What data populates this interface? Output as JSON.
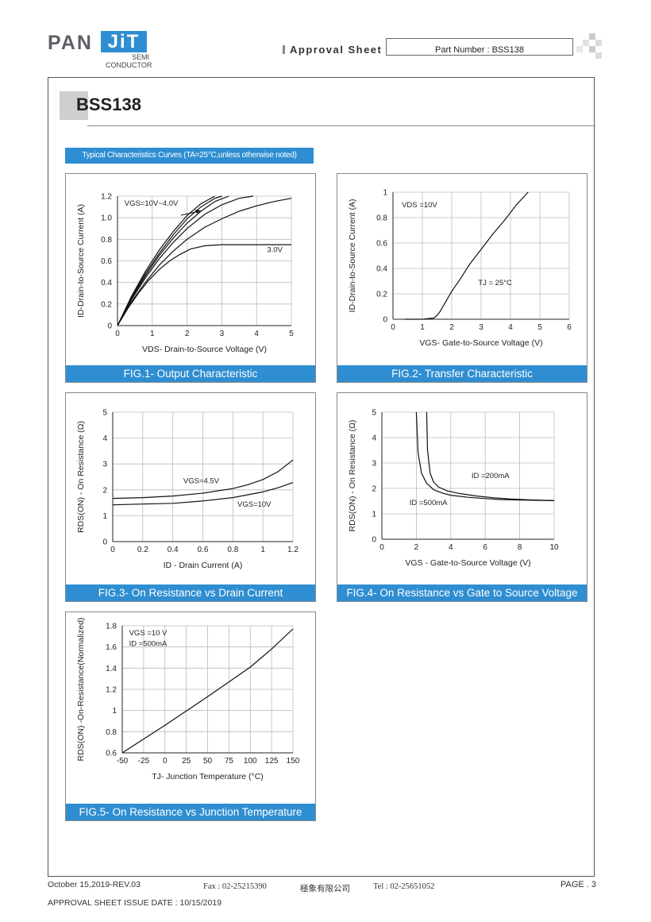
{
  "header": {
    "logo_pan": "PAN",
    "logo_jit": "JiT",
    "logo_semi": "SEMI",
    "logo_conductor": "CONDUCTOR",
    "approval_sheet": "Approval Sheet",
    "part_number": "Part Number : BSS138"
  },
  "title": "BSS138",
  "typical_banner": "Typical Characteristics Curves (TA=25°C,unless otherwise noted)",
  "colors": {
    "accent": "#2f8ed1"
  },
  "chart_data": [
    {
      "id": "fig1",
      "type": "line",
      "caption": "FIG.1-  Output   Characteristic",
      "xlabel": "VDS- Drain-to-Source Voltage (V)",
      "ylabel": "ID-Drain-to-Source Current (A)",
      "xlim": [
        0,
        5
      ],
      "ylim": [
        0,
        1.2
      ],
      "xticks": [
        0,
        1,
        2,
        3,
        4,
        5
      ],
      "yticks": [
        0,
        0.2,
        0.4,
        0.6,
        0.8,
        1.0,
        1.2
      ],
      "yticklabels": [
        "0",
        "0.2",
        "0.4",
        "0.6",
        "0.8",
        "1.0",
        "1.2"
      ],
      "annotations": [
        {
          "text": "VGS=10V~4.0V",
          "x": 0.2,
          "y": 1.11
        },
        {
          "text": "3.0V",
          "x": 4.3,
          "y": 0.68
        }
      ],
      "series": [
        {
          "x": [
            0,
            0.4,
            0.8,
            1.2,
            1.6,
            2.0,
            2.4,
            2.8
          ],
          "y": [
            0,
            0.27,
            0.5,
            0.7,
            0.87,
            1.02,
            1.13,
            1.2
          ]
        },
        {
          "x": [
            0,
            0.4,
            0.8,
            1.2,
            1.6,
            2.0,
            2.4,
            2.8,
            3.0
          ],
          "y": [
            0,
            0.26,
            0.48,
            0.67,
            0.84,
            0.99,
            1.1,
            1.18,
            1.2
          ]
        },
        {
          "x": [
            0,
            0.4,
            0.8,
            1.2,
            1.6,
            2.0,
            2.4,
            2.8,
            3.2
          ],
          "y": [
            0,
            0.25,
            0.46,
            0.65,
            0.81,
            0.95,
            1.06,
            1.15,
            1.2
          ]
        },
        {
          "x": [
            0,
            0.4,
            0.8,
            1.2,
            1.6,
            2.0,
            2.5,
            3.0,
            3.5,
            3.9
          ],
          "y": [
            0,
            0.24,
            0.44,
            0.62,
            0.77,
            0.9,
            1.03,
            1.12,
            1.18,
            1.2
          ]
        },
        {
          "x": [
            0,
            0.4,
            0.8,
            1.2,
            1.6,
            2.0,
            2.5,
            3.0,
            3.5,
            4.0,
            4.5,
            5.0
          ],
          "y": [
            0,
            0.22,
            0.4,
            0.56,
            0.69,
            0.8,
            0.91,
            0.99,
            1.06,
            1.11,
            1.15,
            1.18
          ]
        },
        {
          "x": [
            0,
            0.3,
            0.6,
            0.9,
            1.2,
            1.5,
            1.8,
            2.1,
            2.5,
            3.0,
            3.5,
            4.0,
            5.0
          ],
          "y": [
            0,
            0.16,
            0.3,
            0.42,
            0.52,
            0.6,
            0.66,
            0.71,
            0.74,
            0.75,
            0.75,
            0.75,
            0.75
          ]
        }
      ]
    },
    {
      "id": "fig2",
      "type": "line",
      "caption": "FIG.2-  Transfer  Characteristic",
      "xlabel": "VGS- Gate-to-Source Voltage (V)",
      "ylabel": "ID-Drain-to-Source Current (A)",
      "xlim": [
        0,
        6
      ],
      "ylim": [
        0,
        1
      ],
      "xticks": [
        0,
        1,
        2,
        3,
        4,
        5,
        6
      ],
      "yticks": [
        0,
        0.2,
        0.4,
        0.6,
        0.8,
        1
      ],
      "yticklabels": [
        "0",
        "0.2",
        "0.4",
        "0.6",
        "0.8",
        "1"
      ],
      "annotations": [
        {
          "text": "VDS =10V",
          "x": 0.3,
          "y": 0.88
        },
        {
          "text": "TJ = 25°C",
          "x": 2.9,
          "y": 0.27
        }
      ],
      "series": [
        {
          "x": [
            0.4,
            1.0,
            1.4,
            1.5,
            1.6,
            1.8,
            2.0,
            2.3,
            2.6,
            3.0,
            3.4,
            3.8,
            4.2,
            4.6
          ],
          "y": [
            0,
            0,
            0.01,
            0.03,
            0.06,
            0.14,
            0.22,
            0.32,
            0.43,
            0.55,
            0.67,
            0.78,
            0.9,
            1.0
          ]
        }
      ]
    },
    {
      "id": "fig3",
      "type": "line",
      "caption": "FIG.3-  On Resistance vs Drain Current",
      "xlabel": "ID - Drain Current (A)",
      "ylabel": "RDS(ON) - On Resistance (Ω)",
      "xlim": [
        0,
        1.2
      ],
      "ylim": [
        0,
        5
      ],
      "xticks": [
        0,
        0.2,
        0.4,
        0.6,
        0.8,
        1,
        1.2
      ],
      "yticks": [
        0,
        1,
        2,
        3,
        4,
        5
      ],
      "xticklabels": [
        "0",
        "0.2",
        "0.4",
        "0.6",
        "0.8",
        "1",
        "1.2"
      ],
      "annotations": [
        {
          "text": "VGS=4.5V",
          "x": 0.47,
          "y": 2.25
        },
        {
          "text": "VGS=10V",
          "x": 0.83,
          "y": 1.35
        }
      ],
      "series": [
        {
          "name": "VGS=4.5V",
          "x": [
            0,
            0.2,
            0.4,
            0.6,
            0.8,
            0.9,
            1.0,
            1.1,
            1.2
          ],
          "y": [
            1.67,
            1.7,
            1.76,
            1.87,
            2.05,
            2.2,
            2.4,
            2.7,
            3.15
          ]
        },
        {
          "name": "VGS=10V",
          "x": [
            0,
            0.2,
            0.4,
            0.6,
            0.8,
            1.0,
            1.1,
            1.2
          ],
          "y": [
            1.42,
            1.45,
            1.48,
            1.57,
            1.7,
            1.92,
            2.08,
            2.28
          ]
        }
      ]
    },
    {
      "id": "fig4",
      "type": "line",
      "caption": "FIG.4-  On Resistance vs Gate to Source Voltage",
      "xlabel": "VGS - Gate-to-Source Voltage (V)",
      "ylabel": "RDS(ON) - On Resistance (Ω)",
      "xlim": [
        0,
        10
      ],
      "ylim": [
        0,
        5
      ],
      "xticks": [
        0,
        2,
        4,
        6,
        8,
        10
      ],
      "yticks": [
        0,
        1,
        2,
        3,
        4,
        5
      ],
      "annotations": [
        {
          "text": "ID =200mA",
          "x": 5.2,
          "y": 2.4
        },
        {
          "text": "ID =500mA",
          "x": 1.6,
          "y": 1.35
        }
      ],
      "series": [
        {
          "name": "ID=500mA",
          "x": [
            2.0,
            2.1,
            2.3,
            2.6,
            3.0,
            3.5,
            4.0,
            5.0,
            6.0,
            7.0,
            8.0,
            9.0,
            10.0
          ],
          "y": [
            5.0,
            3.4,
            2.6,
            2.2,
            1.95,
            1.82,
            1.73,
            1.65,
            1.6,
            1.56,
            1.54,
            1.53,
            1.52
          ]
        },
        {
          "name": "ID=200mA",
          "x": [
            2.6,
            2.65,
            2.8,
            3.0,
            3.3,
            3.8,
            4.5,
            5.5,
            6.5,
            7.5,
            8.5,
            10.0
          ],
          "y": [
            5.0,
            3.5,
            2.6,
            2.25,
            2.05,
            1.9,
            1.8,
            1.7,
            1.63,
            1.58,
            1.55,
            1.52
          ]
        }
      ]
    },
    {
      "id": "fig5",
      "type": "line",
      "caption": "FIG.5-  On Resistance vs Junction Temperature",
      "xlabel": "TJ- Junction Temperature (°C)",
      "ylabel": "RDS(ON) -On-Resistance(Normalized)",
      "xlim": [
        -50,
        150
      ],
      "ylim": [
        0.6,
        1.8
      ],
      "xticks": [
        -50,
        -25,
        0,
        25,
        50,
        75,
        100,
        125,
        150
      ],
      "yticks": [
        0.6,
        0.8,
        1,
        1.2,
        1.4,
        1.6,
        1.8
      ],
      "annotations": [
        {
          "text": "VGS =10 V",
          "x": -42,
          "y": 1.71
        },
        {
          "text": "ID =500mA",
          "x": -42,
          "y": 1.61
        }
      ],
      "series": [
        {
          "x": [
            -50,
            0,
            50,
            100,
            125,
            150
          ],
          "y": [
            0.6,
            0.86,
            1.13,
            1.41,
            1.58,
            1.77
          ]
        }
      ]
    }
  ],
  "footer": {
    "date_rev": "October 15,2019-REV.03",
    "fax": "Fax : 02-25215390",
    "company": "極象有限公司",
    "tel": "Tel : 02-25651052",
    "page": "PAGE . 3",
    "issue_date": "APPROVAL SHEET ISSUE DATE : 10/15/2019"
  }
}
